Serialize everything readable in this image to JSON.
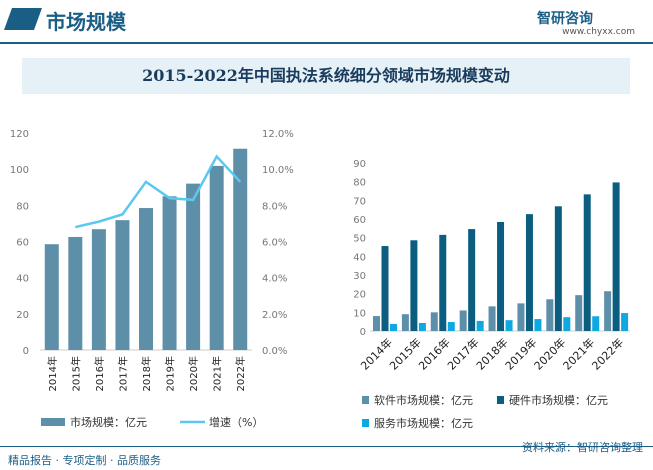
{
  "header": {
    "section_title": "市场规模",
    "logo": "智研咨询",
    "url": "www.chyxx.com"
  },
  "title": "2015-2022年中国执法系统细分领域市场规模变动",
  "footer": {
    "left": "精品报告 · 专项定制 · 品质服务",
    "source": "资料来源：智研咨询整理"
  },
  "colors": {
    "bar": "#5e8fa8",
    "line": "#5bc8f0",
    "software": "#5e8fa8",
    "hardware": "#0b5e80",
    "service": "#10a8e0",
    "brand": "#1a5e86"
  },
  "chart_data": [
    {
      "type": "bar+line",
      "categories": [
        "2014年",
        "2015年",
        "2016年",
        "2017年",
        "2018年",
        "2019年",
        "2020年",
        "2021年",
        "2022年"
      ],
      "series": [
        {
          "name": "市场规模：亿元",
          "type": "bar",
          "axis": "left",
          "values": [
            58.5,
            62.5,
            66.8,
            71.8,
            78.5,
            85,
            92,
            101.8,
            111.3
          ]
        },
        {
          "name": "增速（%）",
          "type": "line",
          "axis": "right",
          "values": [
            null,
            6.8,
            7.1,
            7.5,
            9.3,
            8.4,
            8.3,
            10.7,
            9.3
          ]
        }
      ],
      "ylim": [
        0,
        120
      ],
      "yticks": [
        "0",
        "20",
        "40",
        "60",
        "80",
        "100",
        "120"
      ],
      "y2lim": [
        0,
        12
      ],
      "y2ticks": [
        "0.0%",
        "2.0%",
        "4.0%",
        "6.0%",
        "8.0%",
        "10.0%",
        "12.0%"
      ],
      "legend": "bottom",
      "grid": false
    },
    {
      "type": "bar",
      "categories": [
        "2014年",
        "2015年",
        "2016年",
        "2017年",
        "2018年",
        "2019年",
        "2020年",
        "2021年",
        "2022年"
      ],
      "series": [
        {
          "name": "软件市场规模：亿元",
          "values": [
            8,
            9,
            10,
            11,
            13.2,
            14.8,
            17,
            19.2,
            21.3
          ]
        },
        {
          "name": "硬件市场规模：亿元",
          "values": [
            45.5,
            48.6,
            51.5,
            54.6,
            58.4,
            62.6,
            66.8,
            73.2,
            79.6
          ]
        },
        {
          "name": "服务市场规模：亿元",
          "values": [
            3.8,
            4.3,
            4.8,
            5.4,
            5.8,
            6.4,
            7.4,
            7.9,
            9.6
          ]
        }
      ],
      "ylim": [
        0,
        90
      ],
      "yticks": [
        "0",
        "10",
        "20",
        "30",
        "40",
        "50",
        "60",
        "70",
        "80",
        "90"
      ],
      "legend": "bottom",
      "grid": false
    }
  ]
}
